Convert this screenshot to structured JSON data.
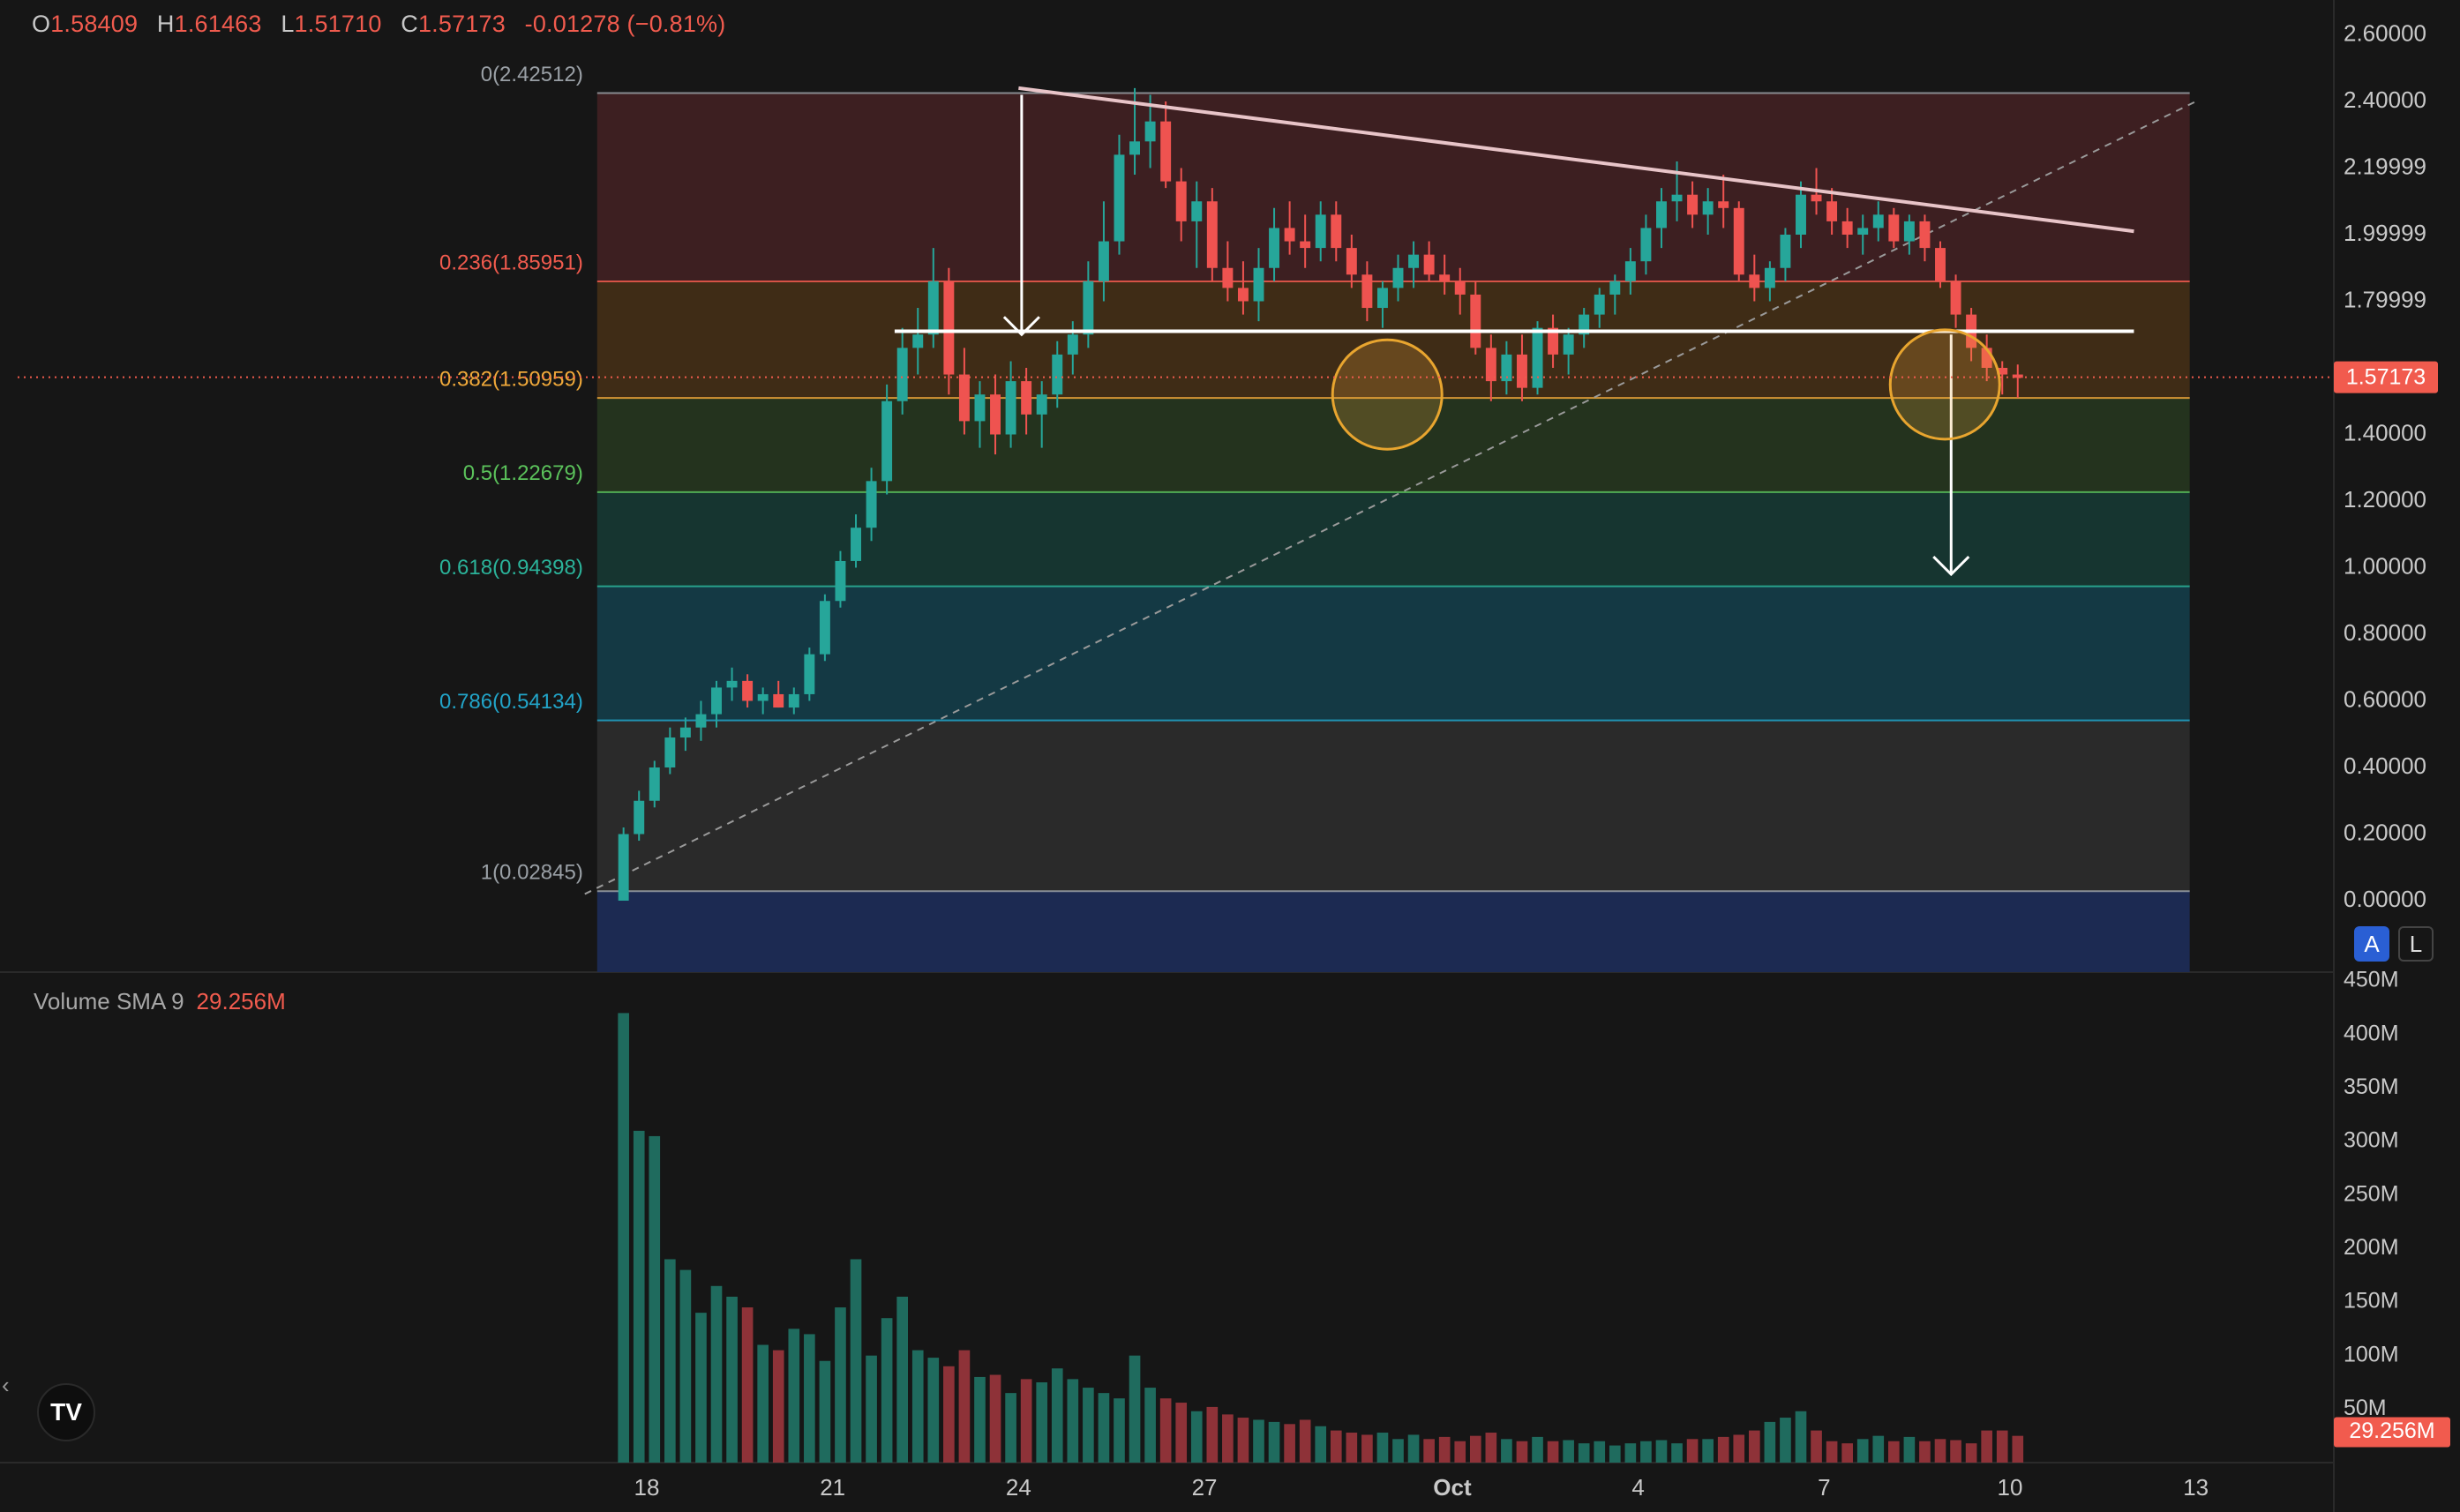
{
  "ohlc": {
    "open_label": "O",
    "open": "1.58409",
    "high_label": "H",
    "high": "1.61463",
    "low_label": "L",
    "low": "1.51710",
    "close_label": "C",
    "close": "1.57173",
    "change": "-0.01278 (−0.81%)"
  },
  "colors": {
    "up": "#26a69a",
    "down": "#ef5350",
    "background": "#161616",
    "last_price_tag": "#f15b4e"
  },
  "price_axis": {
    "ticks": [
      "2.60000",
      "2.40000",
      "2.19999",
      "1.99999",
      "1.79999",
      "1.40000",
      "1.20000",
      "1.00000",
      "0.80000",
      "0.60000",
      "0.40000",
      "0.20000",
      "0.00000"
    ],
    "last_price_label": "1.57173",
    "last_price": 1.57173
  },
  "volume_axis": {
    "ticks": [
      "450M",
      "400M",
      "350M",
      "300M",
      "250M",
      "200M",
      "150M",
      "100M",
      "50M"
    ],
    "last_label": "29.256M"
  },
  "volume_legend": {
    "name": "Volume SMA 9",
    "value": "29.256M"
  },
  "buttons": {
    "auto": "A",
    "log": "L"
  },
  "logo_text": "TV",
  "collapse_icon": "‹",
  "chart_data": {
    "type": "candlestick",
    "x_ticks": [
      "18",
      "21",
      "24",
      "27",
      "Oct",
      "4",
      "7",
      "10",
      "13"
    ],
    "x_tick_dates": [
      "2024-09-18",
      "2024-09-21",
      "2024-09-24",
      "2024-09-27",
      "2024-10-01",
      "2024-10-04",
      "2024-10-07",
      "2024-10-10",
      "2024-10-13"
    ],
    "ylim": [
      -0.1,
      2.65
    ],
    "volume_ylim": [
      0,
      450
    ],
    "volume_unit": "M",
    "fib_levels": [
      {
        "ratio": "0",
        "price": 2.42512,
        "label": "0(2.42512)",
        "color": "#9aa0a6"
      },
      {
        "ratio": "0.236",
        "price": 1.85951,
        "label": "0.236(1.85951)",
        "color": "#f15b4e"
      },
      {
        "ratio": "0.382",
        "price": 1.50959,
        "label": "0.382(1.50959)",
        "color": "#f0a93a"
      },
      {
        "ratio": "0.5",
        "price": 1.22679,
        "label": "0.5(1.22679)",
        "color": "#5bc25b"
      },
      {
        "ratio": "0.618",
        "price": 0.94398,
        "label": "0.618(0.94398)",
        "color": "#2bb39a"
      },
      {
        "ratio": "0.786",
        "price": 0.54134,
        "label": "0.786(0.54134)",
        "color": "#22a4c8"
      },
      {
        "ratio": "1",
        "price": 0.02845,
        "label": "1(0.02845)",
        "color": "#9aa0a6"
      }
    ],
    "fib_start": "2024-09-17",
    "fib_end": "2024-10-13",
    "candle_start": "2024-09-18",
    "candles_per_day": 4,
    "candles": [
      [
        0.0,
        0.22,
        0.0,
        0.2
      ],
      [
        0.2,
        0.33,
        0.18,
        0.3
      ],
      [
        0.3,
        0.42,
        0.28,
        0.4
      ],
      [
        0.4,
        0.52,
        0.38,
        0.49
      ],
      [
        0.49,
        0.55,
        0.45,
        0.52
      ],
      [
        0.52,
        0.6,
        0.48,
        0.56
      ],
      [
        0.56,
        0.66,
        0.52,
        0.64
      ],
      [
        0.64,
        0.7,
        0.6,
        0.66
      ],
      [
        0.66,
        0.68,
        0.58,
        0.6
      ],
      [
        0.6,
        0.64,
        0.56,
        0.62
      ],
      [
        0.62,
        0.66,
        0.58,
        0.58
      ],
      [
        0.58,
        0.64,
        0.56,
        0.62
      ],
      [
        0.62,
        0.76,
        0.6,
        0.74
      ],
      [
        0.74,
        0.92,
        0.72,
        0.9
      ],
      [
        0.9,
        1.05,
        0.88,
        1.02
      ],
      [
        1.02,
        1.16,
        1.0,
        1.12
      ],
      [
        1.12,
        1.3,
        1.08,
        1.26
      ],
      [
        1.26,
        1.55,
        1.22,
        1.5
      ],
      [
        1.5,
        1.72,
        1.46,
        1.66
      ],
      [
        1.66,
        1.78,
        1.58,
        1.7
      ],
      [
        1.7,
        1.96,
        1.66,
        1.86
      ],
      [
        1.86,
        1.9,
        1.52,
        1.58
      ],
      [
        1.58,
        1.66,
        1.4,
        1.44
      ],
      [
        1.44,
        1.56,
        1.36,
        1.52
      ],
      [
        1.52,
        1.58,
        1.34,
        1.4
      ],
      [
        1.4,
        1.62,
        1.36,
        1.56
      ],
      [
        1.56,
        1.6,
        1.4,
        1.46
      ],
      [
        1.46,
        1.56,
        1.36,
        1.52
      ],
      [
        1.52,
        1.68,
        1.48,
        1.64
      ],
      [
        1.64,
        1.74,
        1.58,
        1.7
      ],
      [
        1.7,
        1.92,
        1.66,
        1.86
      ],
      [
        1.86,
        2.1,
        1.8,
        1.98
      ],
      [
        1.98,
        2.3,
        1.94,
        2.24
      ],
      [
        2.24,
        2.44,
        2.18,
        2.28
      ],
      [
        2.28,
        2.42,
        2.2,
        2.34
      ],
      [
        2.34,
        2.4,
        2.14,
        2.16
      ],
      [
        2.16,
        2.2,
        1.98,
        2.04
      ],
      [
        2.04,
        2.16,
        1.9,
        2.1
      ],
      [
        2.1,
        2.14,
        1.86,
        1.9
      ],
      [
        1.9,
        1.98,
        1.8,
        1.84
      ],
      [
        1.84,
        1.92,
        1.76,
        1.8
      ],
      [
        1.8,
        1.96,
        1.74,
        1.9
      ],
      [
        1.9,
        2.08,
        1.86,
        2.02
      ],
      [
        2.02,
        2.1,
        1.94,
        1.98
      ],
      [
        1.98,
        2.06,
        1.9,
        1.96
      ],
      [
        1.96,
        2.1,
        1.92,
        2.06
      ],
      [
        2.06,
        2.1,
        1.92,
        1.96
      ],
      [
        1.96,
        2.0,
        1.84,
        1.88
      ],
      [
        1.88,
        1.92,
        1.74,
        1.78
      ],
      [
        1.78,
        1.86,
        1.72,
        1.84
      ],
      [
        1.84,
        1.94,
        1.8,
        1.9
      ],
      [
        1.9,
        1.98,
        1.84,
        1.94
      ],
      [
        1.94,
        1.98,
        1.86,
        1.88
      ],
      [
        1.88,
        1.94,
        1.82,
        1.86
      ],
      [
        1.86,
        1.9,
        1.76,
        1.82
      ],
      [
        1.82,
        1.86,
        1.64,
        1.66
      ],
      [
        1.66,
        1.7,
        1.5,
        1.56
      ],
      [
        1.56,
        1.68,
        1.52,
        1.64
      ],
      [
        1.64,
        1.7,
        1.5,
        1.54
      ],
      [
        1.54,
        1.74,
        1.52,
        1.72
      ],
      [
        1.72,
        1.76,
        1.6,
        1.64
      ],
      [
        1.64,
        1.72,
        1.58,
        1.7
      ],
      [
        1.7,
        1.78,
        1.66,
        1.76
      ],
      [
        1.76,
        1.84,
        1.72,
        1.82
      ],
      [
        1.82,
        1.88,
        1.76,
        1.86
      ],
      [
        1.86,
        1.96,
        1.82,
        1.92
      ],
      [
        1.92,
        2.06,
        1.88,
        2.02
      ],
      [
        2.02,
        2.14,
        1.96,
        2.1
      ],
      [
        2.1,
        2.22,
        2.04,
        2.12
      ],
      [
        2.12,
        2.16,
        2.02,
        2.06
      ],
      [
        2.06,
        2.14,
        2.0,
        2.1
      ],
      [
        2.1,
        2.18,
        2.02,
        2.08
      ],
      [
        2.08,
        2.1,
        1.86,
        1.88
      ],
      [
        1.88,
        1.94,
        1.8,
        1.84
      ],
      [
        1.84,
        1.92,
        1.8,
        1.9
      ],
      [
        1.9,
        2.02,
        1.86,
        2.0
      ],
      [
        2.0,
        2.16,
        1.96,
        2.12
      ],
      [
        2.12,
        2.2,
        2.06,
        2.1
      ],
      [
        2.1,
        2.14,
        2.0,
        2.04
      ],
      [
        2.04,
        2.08,
        1.96,
        2.0
      ],
      [
        2.0,
        2.06,
        1.94,
        2.02
      ],
      [
        2.02,
        2.1,
        1.98,
        2.06
      ],
      [
        2.06,
        2.08,
        1.96,
        1.98
      ],
      [
        1.98,
        2.06,
        1.94,
        2.04
      ],
      [
        2.04,
        2.06,
        1.92,
        1.96
      ],
      [
        1.96,
        1.98,
        1.84,
        1.86
      ],
      [
        1.86,
        1.88,
        1.72,
        1.76
      ],
      [
        1.76,
        1.78,
        1.62,
        1.66
      ],
      [
        1.66,
        1.7,
        1.56,
        1.6
      ],
      [
        1.6,
        1.62,
        1.52,
        1.58
      ],
      [
        1.58,
        1.61,
        1.51,
        1.57
      ]
    ],
    "volumes": [
      420,
      310,
      305,
      190,
      180,
      140,
      165,
      155,
      145,
      110,
      105,
      125,
      120,
      95,
      145,
      190,
      100,
      135,
      155,
      105,
      98,
      90,
      105,
      80,
      82,
      65,
      78,
      75,
      88,
      78,
      70,
      65,
      60,
      100,
      70,
      60,
      56,
      48,
      52,
      45,
      42,
      40,
      38,
      36,
      40,
      34,
      30,
      28,
      26,
      28,
      22,
      26,
      22,
      24,
      20,
      25,
      28,
      22,
      20,
      24,
      20,
      21,
      18,
      20,
      16,
      18,
      20,
      21,
      18,
      22,
      22,
      24,
      26,
      30,
      38,
      42,
      48,
      30,
      20,
      18,
      22,
      25,
      20,
      24,
      20,
      22,
      21,
      18,
      30,
      30,
      25
    ],
    "trendlines": [
      {
        "name": "descending-resistance",
        "from": [
          "2024-09-24",
          2.44
        ],
        "to": [
          "2024-10-12",
          2.01
        ],
        "color": "#e8c4c8"
      },
      {
        "name": "horizontal-support",
        "from": [
          "2024-09-22",
          1.71
        ],
        "to": [
          "2024-10-12",
          1.71
        ],
        "color": "#ffffff"
      },
      {
        "name": "rising-diagonal",
        "from": [
          "2024-09-17",
          0.02
        ],
        "to": [
          "2024-10-13",
          2.4
        ],
        "color": "#9a9a9a",
        "dashed": true
      }
    ],
    "arrows": [
      {
        "name": "measured-move-top",
        "from": [
          "2024-09-24",
          2.42
        ],
        "to": [
          "2024-09-24",
          1.7
        ]
      },
      {
        "name": "measured-move-projection",
        "from": [
          "2024-10-09",
          1.7
        ],
        "to": [
          "2024-10-09",
          0.98
        ]
      }
    ],
    "circles": [
      {
        "name": "retest-circle-1",
        "date": "2024-09-30",
        "price": 1.52
      },
      {
        "name": "retest-circle-2",
        "date": "2024-10-09",
        "price": 1.55
      }
    ]
  }
}
